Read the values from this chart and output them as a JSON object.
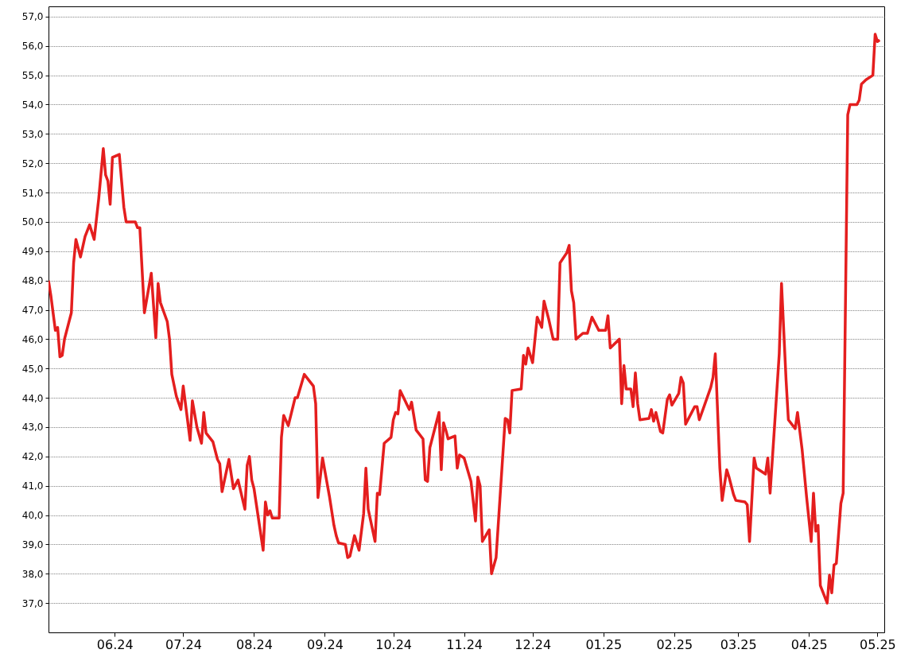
{
  "chart_data": {
    "type": "line",
    "x": [
      "2024-05-03",
      "2024-05-04",
      "2024-05-06",
      "2024-05-07",
      "2024-05-08",
      "2024-05-09",
      "2024-05-10",
      "2024-05-13",
      "2024-05-14",
      "2024-05-15",
      "2024-05-17",
      "2024-05-19",
      "2024-05-21",
      "2024-05-23",
      "2024-05-25",
      "2024-05-27",
      "2024-05-28",
      "2024-05-29",
      "2024-05-30",
      "2024-05-31",
      "2024-06-03",
      "2024-06-05",
      "2024-06-06",
      "2024-06-10",
      "2024-06-11",
      "2024-06-12",
      "2024-06-14",
      "2024-06-17",
      "2024-06-19",
      "2024-06-20",
      "2024-06-21",
      "2024-06-24",
      "2024-06-25",
      "2024-06-26",
      "2024-06-28",
      "2024-06-30",
      "2024-07-01",
      "2024-07-04",
      "2024-07-05",
      "2024-07-07",
      "2024-07-09",
      "2024-07-10",
      "2024-07-11",
      "2024-07-14",
      "2024-07-16",
      "2024-07-17",
      "2024-07-18",
      "2024-07-21",
      "2024-07-23",
      "2024-07-25",
      "2024-07-28",
      "2024-07-29",
      "2024-07-30",
      "2024-07-31",
      "2024-08-01",
      "2024-08-05",
      "2024-08-06",
      "2024-08-07",
      "2024-08-08",
      "2024-08-09",
      "2024-08-12",
      "2024-08-13",
      "2024-08-14",
      "2024-08-16",
      "2024-08-19",
      "2024-08-20",
      "2024-08-23",
      "2024-08-27",
      "2024-08-28",
      "2024-08-29",
      "2024-08-31",
      "2024-09-03",
      "2024-09-05",
      "2024-09-06",
      "2024-09-07",
      "2024-09-10",
      "2024-09-11",
      "2024-09-12",
      "2024-09-14",
      "2024-09-16",
      "2024-09-18",
      "2024-09-19",
      "2024-09-20",
      "2024-09-23",
      "2024-09-24",
      "2024-09-25",
      "2024-09-27",
      "2024-09-30",
      "2024-10-01",
      "2024-10-02",
      "2024-10-03",
      "2024-10-04",
      "2024-10-08",
      "2024-10-09",
      "2024-10-11",
      "2024-10-14",
      "2024-10-15",
      "2024-10-16",
      "2024-10-17",
      "2024-10-21",
      "2024-10-22",
      "2024-10-23",
      "2024-10-24",
      "2024-10-25",
      "2024-10-28",
      "2024-10-29",
      "2024-10-30",
      "2024-11-01",
      "2024-11-04",
      "2024-11-06",
      "2024-11-07",
      "2024-11-08",
      "2024-11-09",
      "2024-11-12",
      "2024-11-13",
      "2024-11-15",
      "2024-11-19",
      "2024-11-20",
      "2024-11-21",
      "2024-11-22",
      "2024-11-26",
      "2024-11-27",
      "2024-11-28",
      "2024-11-29",
      "2024-12-01",
      "2024-12-03",
      "2024-12-05",
      "2024-12-06",
      "2024-12-08",
      "2024-12-10",
      "2024-12-12",
      "2024-12-13",
      "2024-12-16",
      "2024-12-17",
      "2024-12-18",
      "2024-12-19",
      "2024-12-20",
      "2024-12-23",
      "2024-12-25",
      "2024-12-27",
      "2024-12-30",
      "2025-01-02",
      "2025-01-03",
      "2025-01-04",
      "2025-01-08",
      "2025-01-09",
      "2025-01-10",
      "2025-01-11",
      "2025-01-13",
      "2025-01-14",
      "2025-01-15",
      "2025-01-16",
      "2025-01-17",
      "2025-01-21",
      "2025-01-22",
      "2025-01-23",
      "2025-01-24",
      "2025-01-26",
      "2025-01-27",
      "2025-01-29",
      "2025-01-30",
      "2025-01-31",
      "2025-02-03",
      "2025-02-04",
      "2025-02-05",
      "2025-02-06",
      "2025-02-10",
      "2025-02-11",
      "2025-02-12",
      "2025-02-17",
      "2025-02-18",
      "2025-02-19",
      "2025-02-21",
      "2025-02-22",
      "2025-02-24",
      "2025-02-25",
      "2025-02-27",
      "2025-02-28",
      "2025-03-04",
      "2025-03-05",
      "2025-03-06",
      "2025-03-08",
      "2025-03-09",
      "2025-03-13",
      "2025-03-14",
      "2025-03-15",
      "2025-03-17",
      "2025-03-19",
      "2025-03-20",
      "2025-03-22",
      "2025-03-23",
      "2025-03-26",
      "2025-03-27",
      "2025-03-29",
      "2025-03-31",
      "2025-04-02",
      "2025-04-03",
      "2025-04-04",
      "2025-04-05",
      "2025-04-06",
      "2025-04-09",
      "2025-04-10",
      "2025-04-11",
      "2025-04-12",
      "2025-04-13",
      "2025-04-15",
      "2025-04-16",
      "2025-04-18",
      "2025-04-19",
      "2025-04-22",
      "2025-04-23",
      "2025-04-24",
      "2025-04-26",
      "2025-04-29",
      "2025-04-30",
      "2025-05-01",
      "2025-05-02"
    ],
    "series": [
      {
        "color": "#e41e1e",
        "values": [
          48.0,
          47.5,
          46.3,
          46.4,
          45.4,
          45.45,
          46.0,
          46.9,
          48.6,
          49.4,
          48.8,
          49.5,
          49.9,
          49.4,
          50.8,
          52.5,
          51.6,
          51.4,
          50.6,
          52.2,
          52.3,
          50.5,
          50.0,
          50.0,
          49.8,
          49.8,
          46.9,
          48.25,
          46.05,
          47.9,
          47.25,
          46.6,
          46.0,
          44.8,
          44.05,
          43.6,
          44.4,
          42.55,
          43.9,
          43.0,
          42.45,
          43.5,
          42.8,
          42.5,
          41.9,
          41.75,
          40.8,
          41.9,
          40.9,
          41.2,
          40.2,
          41.7,
          42.0,
          41.2,
          40.9,
          38.8,
          40.45,
          40.0,
          40.15,
          39.9,
          39.9,
          42.65,
          43.4,
          43.05,
          44.0,
          44.0,
          44.8,
          44.4,
          43.8,
          40.6,
          41.95,
          40.65,
          39.65,
          39.3,
          39.05,
          39.0,
          38.55,
          38.6,
          39.3,
          38.8,
          40.05,
          41.6,
          40.2,
          39.1,
          40.75,
          40.7,
          42.45,
          42.65,
          43.25,
          43.5,
          43.45,
          44.25,
          43.6,
          43.85,
          42.9,
          42.6,
          41.2,
          41.15,
          42.3,
          43.5,
          41.55,
          43.15,
          42.9,
          42.6,
          42.7,
          41.6,
          42.05,
          41.95,
          41.15,
          39.8,
          41.3,
          41.0,
          39.1,
          39.5,
          38.0,
          38.55,
          43.3,
          43.25,
          42.8,
          44.25,
          44.3,
          45.45,
          45.15,
          45.7,
          45.2,
          46.75,
          46.4,
          47.3,
          46.7,
          46.0,
          46.0,
          48.6,
          48.95,
          49.2,
          47.65,
          47.25,
          46.0,
          46.2,
          46.2,
          46.75,
          46.3,
          46.3,
          46.8,
          45.7,
          46.0,
          43.8,
          45.1,
          44.3,
          44.3,
          43.7,
          44.85,
          43.8,
          43.25,
          43.3,
          43.6,
          43.2,
          43.5,
          42.85,
          42.8,
          43.95,
          44.1,
          43.75,
          44.15,
          44.7,
          44.5,
          43.1,
          43.7,
          43.7,
          43.25,
          44.35,
          44.7,
          45.5,
          41.6,
          40.5,
          41.55,
          41.3,
          40.7,
          40.5,
          40.45,
          40.35,
          39.1,
          41.95,
          41.6,
          41.4,
          41.95,
          40.75,
          43.1,
          45.5,
          47.9,
          44.6,
          43.25,
          42.95,
          43.5,
          42.25,
          40.6,
          39.1,
          40.75,
          39.45,
          39.65,
          37.6,
          37.0,
          37.95,
          37.35,
          38.3,
          38.35,
          40.4,
          40.75,
          53.65,
          54.0,
          54.0,
          54.15,
          54.7,
          54.85,
          55.0,
          56.4,
          56.15,
          56.2
        ]
      }
    ],
    "xlim": [
      "2024-05-03",
      "2025-05-04"
    ],
    "xticks": [
      {
        "value": "2024-06-01",
        "label": "06.24"
      },
      {
        "value": "2024-07-01",
        "label": "07.24"
      },
      {
        "value": "2024-08-01",
        "label": "08.24"
      },
      {
        "value": "2024-09-01",
        "label": "09.24"
      },
      {
        "value": "2024-10-01",
        "label": "10.24"
      },
      {
        "value": "2024-11-01",
        "label": "11.24"
      },
      {
        "value": "2024-12-01",
        "label": "12.24"
      },
      {
        "value": "2025-01-01",
        "label": "01.25"
      },
      {
        "value": "2025-02-01",
        "label": "02.25"
      },
      {
        "value": "2025-03-01",
        "label": "03.25"
      },
      {
        "value": "2025-04-01",
        "label": "04.25"
      },
      {
        "value": "2025-05-01",
        "label": "05.25"
      }
    ],
    "ylim": [
      36.0,
      57.35
    ],
    "yticks": [
      {
        "value": 37,
        "label": "37,0"
      },
      {
        "value": 38,
        "label": "38,0"
      },
      {
        "value": 39,
        "label": "39,0"
      },
      {
        "value": 40,
        "label": "40,0"
      },
      {
        "value": 41,
        "label": "41,0"
      },
      {
        "value": 42,
        "label": "42,0"
      },
      {
        "value": 43,
        "label": "43,0"
      },
      {
        "value": 44,
        "label": "44,0"
      },
      {
        "value": 45,
        "label": "45,0"
      },
      {
        "value": 46,
        "label": "46,0"
      },
      {
        "value": 47,
        "label": "47,0"
      },
      {
        "value": 48,
        "label": "48,0"
      },
      {
        "value": 49,
        "label": "49,0"
      },
      {
        "value": 50,
        "label": "50,0"
      },
      {
        "value": 51,
        "label": "51,0"
      },
      {
        "value": 52,
        "label": "52,0"
      },
      {
        "value": 53,
        "label": "53,0"
      },
      {
        "value": 54,
        "label": "54,0"
      },
      {
        "value": 55,
        "label": "55,0"
      },
      {
        "value": 56,
        "label": "56,0"
      },
      {
        "value": 57,
        "label": "57,0"
      }
    ],
    "grid": "y",
    "marker": "none",
    "line_style": "solid"
  }
}
